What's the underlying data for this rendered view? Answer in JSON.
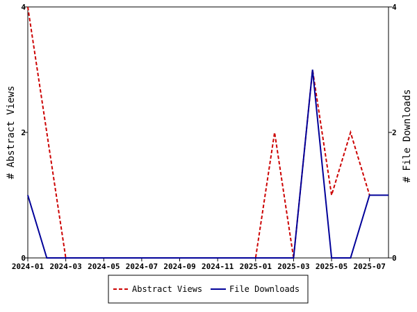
{
  "chart_data": {
    "type": "line",
    "x_labels": [
      "2024-01",
      "2024-03",
      "2024-05",
      "2024-07",
      "2024-09",
      "2024-11",
      "2025-01",
      "2025-03",
      "2025-05",
      "2025-07"
    ],
    "months": [
      "2024-01",
      "2024-02",
      "2024-03",
      "2024-04",
      "2024-05",
      "2024-06",
      "2024-07",
      "2024-08",
      "2024-09",
      "2024-10",
      "2024-11",
      "2024-12",
      "2025-01",
      "2025-02",
      "2025-03",
      "2025-04",
      "2025-05",
      "2025-06",
      "2025-07",
      "2025-08"
    ],
    "y_left_label": "# Abstract Views",
    "y_right_label": "# File Downloads",
    "y_ticks": [
      "0",
      "2",
      "4"
    ],
    "ylim": [
      0,
      4
    ],
    "grid": false,
    "legend_position": "bottom",
    "series": [
      {
        "name": "Abstract Views",
        "color": "#cc0000",
        "dash": true,
        "values": [
          4,
          2,
          0,
          0,
          0,
          0,
          0,
          0,
          0,
          0,
          0,
          0,
          0,
          2,
          0,
          3,
          1,
          2,
          1,
          null
        ]
      },
      {
        "name": "File Downloads",
        "color": "#000099",
        "dash": false,
        "values": [
          1,
          0,
          0,
          0,
          0,
          0,
          0,
          0,
          0,
          0,
          0,
          0,
          0,
          0,
          0,
          3,
          0,
          0,
          1,
          1
        ]
      }
    ]
  }
}
